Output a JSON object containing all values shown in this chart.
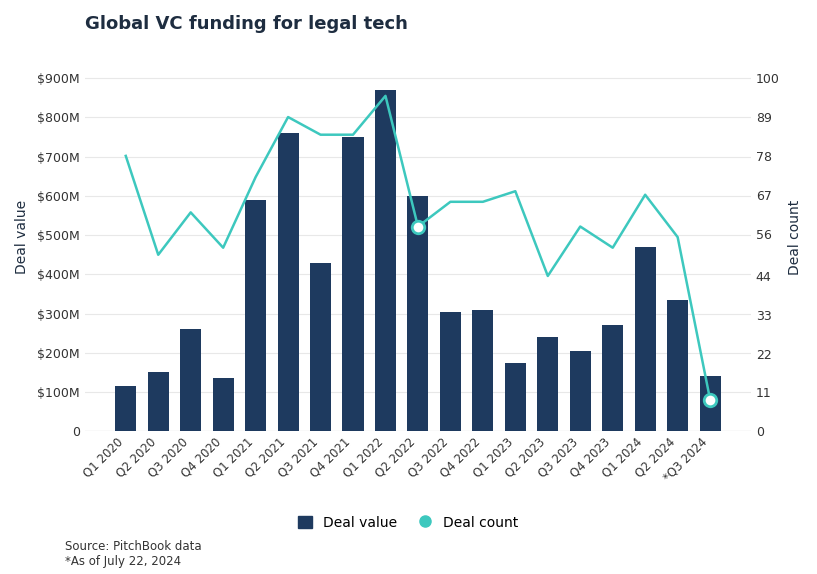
{
  "title": "Global VC funding for legal tech",
  "categories": [
    "Q1 2020",
    "Q2 2020",
    "Q3 2020",
    "Q4 2020",
    "Q1 2021",
    "Q2 2021",
    "Q3 2021",
    "Q4 2021",
    "Q1 2022",
    "Q2 2022",
    "Q3 2022",
    "Q4 2022",
    "Q1 2023",
    "Q2 2023",
    "Q3 2023",
    "Q4 2023",
    "Q1 2024",
    "Q2 2024",
    "*Q3 2024"
  ],
  "deal_value_M": [
    115,
    150,
    260,
    135,
    590,
    760,
    430,
    750,
    870,
    600,
    305,
    310,
    175,
    240,
    205,
    270,
    470,
    335,
    140
  ],
  "deal_count": [
    78,
    50,
    62,
    52,
    72,
    89,
    84,
    84,
    95,
    58,
    65,
    65,
    68,
    44,
    58,
    52,
    67,
    55,
    9
  ],
  "bar_color": "#1e3a5f",
  "line_color": "#3dc8be",
  "ylabel_left": "Deal value",
  "ylabel_right": "Deal count",
  "ylim_left": [
    0,
    990
  ],
  "ylim_right": [
    0,
    110
  ],
  "yticks_left": [
    0,
    100,
    200,
    300,
    400,
    500,
    600,
    700,
    800,
    900
  ],
  "yticks_right": [
    0,
    11,
    22,
    33,
    44,
    56,
    67,
    78,
    89,
    100
  ],
  "ytick_labels_left": [
    "0",
    "$100M",
    "$200M",
    "$300M",
    "$400M",
    "$500M",
    "$600M",
    "$700M",
    "$800M",
    "$900M"
  ],
  "ytick_labels_right": [
    "0",
    "11",
    "22",
    "33",
    "44",
    "56",
    "67",
    "78",
    "89",
    "100"
  ],
  "source_text": "Source: PitchBook data\n*As of July 22, 2024",
  "legend_labels": [
    "Deal value",
    "Deal count"
  ],
  "background_color": "#ffffff",
  "title_color": "#1e2d40",
  "axis_label_color": "#1e2d40",
  "tick_color": "#333333",
  "open_circle_indices": [
    9,
    18
  ]
}
